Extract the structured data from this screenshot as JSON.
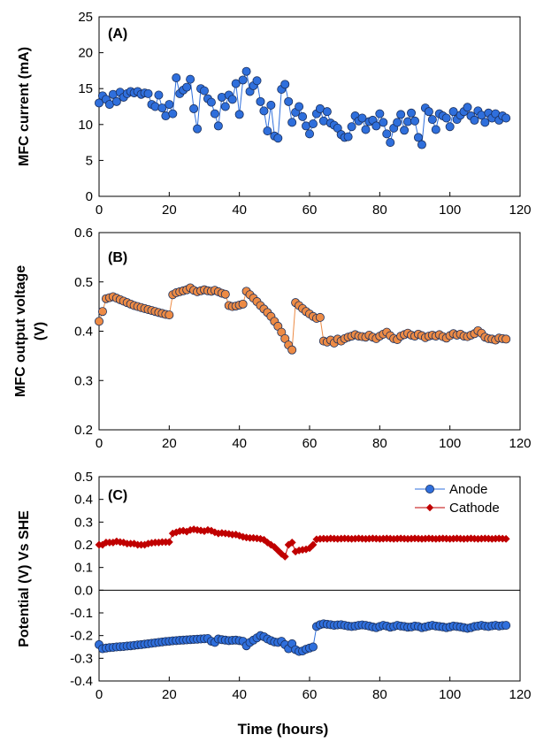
{
  "chart_data": [
    {
      "type": "scatter",
      "panel_label": "(A)",
      "ylabel": "MFC current (mA)",
      "xlim": [
        0,
        120
      ],
      "ylim": [
        0,
        25
      ],
      "xticks": [
        "0",
        "20",
        "40",
        "60",
        "80",
        "100",
        "120"
      ],
      "yticks": [
        "0",
        "5",
        "10",
        "15",
        "20",
        "25"
      ],
      "series": [
        {
          "color": "#2f6fdc",
          "x": [
            0,
            1,
            2,
            3,
            4,
            5,
            6,
            7,
            8,
            9,
            10,
            11,
            12,
            13,
            14,
            15,
            16,
            17,
            18,
            19,
            20,
            21,
            22,
            23,
            24,
            25,
            26,
            27,
            28,
            29,
            30,
            31,
            32,
            33,
            34,
            35,
            36,
            37,
            38,
            39,
            40,
            41,
            42,
            43,
            44,
            45,
            46,
            47,
            48,
            49,
            50,
            51,
            52,
            53,
            54,
            55,
            56,
            57,
            58,
            59,
            60,
            61,
            62,
            63,
            64,
            65,
            66,
            67,
            68,
            69,
            70,
            71,
            72,
            73,
            74,
            75,
            76,
            77,
            78,
            79,
            80,
            81,
            82,
            83,
            84,
            85,
            86,
            87,
            88,
            89,
            90,
            91,
            92,
            93,
            94,
            95,
            96,
            97,
            98,
            99,
            100,
            101,
            102,
            103,
            104,
            105,
            106,
            107,
            108,
            109,
            110,
            111,
            112,
            113,
            114,
            115,
            116
          ],
          "y": [
            13,
            14,
            13.5,
            12.8,
            14.2,
            13.2,
            14.5,
            13.8,
            14.3,
            14.6,
            14.4,
            14.6,
            14.2,
            14.4,
            14.3,
            12.8,
            12.5,
            14.1,
            12.3,
            11.2,
            12.8,
            11.5,
            16.5,
            14.3,
            14.8,
            15.2,
            16.3,
            12.2,
            9.4,
            15,
            14.7,
            13.6,
            13.1,
            11.5,
            9.8,
            13.8,
            12.5,
            14.1,
            13.5,
            15.7,
            11.4,
            16.2,
            17.4,
            14.6,
            15.4,
            16.1,
            13.2,
            11.9,
            9.1,
            12.7,
            8.4,
            8.1,
            14.9,
            15.6,
            13.2,
            10.3,
            11.7,
            12.5,
            11.1,
            9.8,
            8.7,
            10.1,
            11.5,
            12.2,
            10.5,
            11.8,
            10.2,
            9.9,
            9.5,
            8.6,
            8.2,
            8.3,
            9.7,
            11.2,
            10.5,
            10.9,
            9.3,
            10.4,
            10.6,
            9.8,
            11.5,
            10.3,
            8.7,
            7.5,
            9.5,
            10.3,
            11.4,
            9.2,
            10.4,
            11.6,
            10.5,
            8.2,
            7.2,
            12.3,
            11.8,
            10.7,
            9.3,
            11.5,
            11.2,
            10.9,
            9.7,
            11.8,
            10.7,
            11.3,
            11.8,
            12.4,
            11.2,
            10.6,
            11.9,
            11.3,
            10.3,
            11.6,
            10.9,
            11.5,
            10.6,
            11.2,
            10.9
          ]
        }
      ]
    },
    {
      "type": "scatter",
      "panel_label": "(B)",
      "ylabel": "MFC output voltage (V)",
      "xlim": [
        0,
        120
      ],
      "ylim": [
        0.2,
        0.6
      ],
      "xticks": [
        "0",
        "20",
        "40",
        "60",
        "80",
        "100",
        "120"
      ],
      "yticks": [
        "0.2",
        "0.3",
        "0.4",
        "0.5",
        "0.6"
      ],
      "series": [
        {
          "color": "#ed8b45",
          "x": [
            0,
            1,
            2,
            3,
            4,
            5,
            6,
            7,
            8,
            9,
            10,
            11,
            12,
            13,
            14,
            15,
            16,
            17,
            18,
            19,
            20,
            21,
            22,
            23,
            24,
            25,
            26,
            27,
            28,
            29,
            30,
            31,
            32,
            33,
            34,
            35,
            36,
            37,
            38,
            39,
            40,
            41,
            42,
            43,
            44,
            45,
            46,
            47,
            48,
            49,
            50,
            51,
            52,
            53,
            54,
            55,
            56,
            57,
            58,
            59,
            60,
            61,
            62,
            63,
            64,
            65,
            66,
            67,
            68,
            69,
            70,
            71,
            72,
            73,
            74,
            75,
            76,
            77,
            78,
            79,
            80,
            81,
            82,
            83,
            84,
            85,
            86,
            87,
            88,
            89,
            90,
            91,
            92,
            93,
            94,
            95,
            96,
            97,
            98,
            99,
            100,
            101,
            102,
            103,
            104,
            105,
            106,
            107,
            108,
            109,
            110,
            111,
            112,
            113,
            114,
            115,
            116
          ],
          "y": [
            0.42,
            0.44,
            0.466,
            0.468,
            0.47,
            0.467,
            0.464,
            0.461,
            0.458,
            0.455,
            0.452,
            0.45,
            0.448,
            0.446,
            0.444,
            0.442,
            0.44,
            0.438,
            0.436,
            0.434,
            0.433,
            0.474,
            0.478,
            0.48,
            0.482,
            0.484,
            0.488,
            0.483,
            0.48,
            0.482,
            0.484,
            0.482,
            0.481,
            0.483,
            0.48,
            0.477,
            0.475,
            0.452,
            0.45,
            0.451,
            0.453,
            0.455,
            0.481,
            0.474,
            0.467,
            0.46,
            0.452,
            0.445,
            0.438,
            0.43,
            0.42,
            0.41,
            0.398,
            0.385,
            0.372,
            0.362,
            0.458,
            0.452,
            0.446,
            0.44,
            0.435,
            0.43,
            0.426,
            0.428,
            0.38,
            0.378,
            0.382,
            0.376,
            0.384,
            0.38,
            0.385,
            0.388,
            0.39,
            0.393,
            0.39,
            0.389,
            0.388,
            0.392,
            0.388,
            0.385,
            0.39,
            0.394,
            0.398,
            0.391,
            0.385,
            0.383,
            0.39,
            0.393,
            0.396,
            0.392,
            0.39,
            0.394,
            0.391,
            0.387,
            0.39,
            0.392,
            0.39,
            0.393,
            0.389,
            0.386,
            0.391,
            0.395,
            0.392,
            0.394,
            0.39,
            0.389,
            0.392,
            0.395,
            0.401,
            0.396,
            0.388,
            0.385,
            0.384,
            0.382,
            0.386,
            0.385,
            0.384
          ]
        }
      ]
    },
    {
      "type": "scatter",
      "panel_label": "(C)",
      "ylabel": "Potential (V) Vs SHE",
      "xlabel": "Time (hours)",
      "xlim": [
        0,
        120
      ],
      "ylim": [
        -0.4,
        0.5
      ],
      "xticks": [
        "0",
        "20",
        "40",
        "60",
        "80",
        "100",
        "120"
      ],
      "yticks": [
        "-0.4",
        "-0.3",
        "-0.2",
        "-0.1",
        "0.0",
        "0.1",
        "0.2",
        "0.3",
        "0.4",
        "0.5"
      ],
      "legend_position": "top-right",
      "series": [
        {
          "name": "Anode",
          "marker": "circle",
          "color": "#2f6fdc",
          "x": [
            0,
            1,
            2,
            3,
            4,
            5,
            6,
            7,
            8,
            9,
            10,
            11,
            12,
            13,
            14,
            15,
            16,
            17,
            18,
            19,
            20,
            21,
            22,
            23,
            24,
            25,
            26,
            27,
            28,
            29,
            30,
            31,
            32,
            33,
            34,
            35,
            36,
            37,
            38,
            39,
            40,
            41,
            42,
            43,
            44,
            45,
            46,
            47,
            48,
            49,
            50,
            51,
            52,
            53,
            54,
            55,
            56,
            57,
            58,
            59,
            60,
            61,
            62,
            63,
            64,
            65,
            66,
            67,
            68,
            69,
            70,
            71,
            72,
            73,
            74,
            75,
            76,
            77,
            78,
            79,
            80,
            81,
            82,
            83,
            84,
            85,
            86,
            87,
            88,
            89,
            90,
            91,
            92,
            93,
            94,
            95,
            96,
            97,
            98,
            99,
            100,
            101,
            102,
            103,
            104,
            105,
            106,
            107,
            108,
            109,
            110,
            111,
            112,
            113,
            114,
            115,
            116
          ],
          "y": [
            -0.24,
            -0.258,
            -0.255,
            -0.253,
            -0.252,
            -0.25,
            -0.249,
            -0.248,
            -0.246,
            -0.245,
            -0.243,
            -0.241,
            -0.24,
            -0.238,
            -0.236,
            -0.234,
            -0.232,
            -0.23,
            -0.228,
            -0.226,
            -0.225,
            -0.223,
            -0.222,
            -0.221,
            -0.22,
            -0.219,
            -0.218,
            -0.217,
            -0.216,
            -0.215,
            -0.214,
            -0.213,
            -0.225,
            -0.23,
            -0.215,
            -0.218,
            -0.22,
            -0.222,
            -0.221,
            -0.22,
            -0.222,
            -0.225,
            -0.245,
            -0.23,
            -0.22,
            -0.21,
            -0.2,
            -0.205,
            -0.215,
            -0.222,
            -0.228,
            -0.23,
            -0.225,
            -0.24,
            -0.258,
            -0.236,
            -0.262,
            -0.27,
            -0.268,
            -0.26,
            -0.255,
            -0.25,
            -0.16,
            -0.152,
            -0.148,
            -0.15,
            -0.152,
            -0.155,
            -0.153,
            -0.152,
            -0.155,
            -0.158,
            -0.16,
            -0.158,
            -0.155,
            -0.153,
            -0.155,
            -0.158,
            -0.162,
            -0.165,
            -0.16,
            -0.155,
            -0.158,
            -0.163,
            -0.16,
            -0.155,
            -0.158,
            -0.16,
            -0.163,
            -0.162,
            -0.158,
            -0.16,
            -0.165,
            -0.162,
            -0.158,
            -0.155,
            -0.158,
            -0.16,
            -0.162,
            -0.165,
            -0.162,
            -0.158,
            -0.16,
            -0.162,
            -0.165,
            -0.168,
            -0.165,
            -0.16,
            -0.158,
            -0.155,
            -0.158,
            -0.16,
            -0.157,
            -0.155,
            -0.158,
            -0.156,
            -0.155
          ]
        },
        {
          "name": "Cathode",
          "marker": "diamond",
          "color": "#c00000",
          "x": [
            0,
            1,
            2,
            3,
            4,
            5,
            6,
            7,
            8,
            9,
            10,
            11,
            12,
            13,
            14,
            15,
            16,
            17,
            18,
            19,
            20,
            21,
            22,
            23,
            24,
            25,
            26,
            27,
            28,
            29,
            30,
            31,
            32,
            33,
            34,
            35,
            36,
            37,
            38,
            39,
            40,
            41,
            42,
            43,
            44,
            45,
            46,
            47,
            48,
            49,
            50,
            51,
            52,
            53,
            54,
            55,
            56,
            57,
            58,
            59,
            60,
            61,
            62,
            63,
            64,
            65,
            66,
            67,
            68,
            69,
            70,
            71,
            72,
            73,
            74,
            75,
            76,
            77,
            78,
            79,
            80,
            81,
            82,
            83,
            84,
            85,
            86,
            87,
            88,
            89,
            90,
            91,
            92,
            93,
            94,
            95,
            96,
            97,
            98,
            99,
            100,
            101,
            102,
            103,
            104,
            105,
            106,
            107,
            108,
            109,
            110,
            111,
            112,
            113,
            114,
            115,
            116
          ],
          "y": [
            0.2,
            0.2,
            0.21,
            0.21,
            0.21,
            0.215,
            0.212,
            0.21,
            0.205,
            0.205,
            0.205,
            0.2,
            0.2,
            0.2,
            0.205,
            0.208,
            0.21,
            0.21,
            0.212,
            0.212,
            0.212,
            0.25,
            0.255,
            0.26,
            0.262,
            0.258,
            0.265,
            0.268,
            0.265,
            0.263,
            0.26,
            0.265,
            0.262,
            0.255,
            0.25,
            0.252,
            0.25,
            0.248,
            0.245,
            0.245,
            0.24,
            0.235,
            0.232,
            0.23,
            0.23,
            0.228,
            0.226,
            0.222,
            0.21,
            0.2,
            0.19,
            0.175,
            0.16,
            0.148,
            0.2,
            0.21,
            0.17,
            0.175,
            0.178,
            0.18,
            0.185,
            0.2,
            0.224,
            0.226,
            0.227,
            0.226,
            0.228,
            0.227,
            0.226,
            0.227,
            0.228,
            0.227,
            0.226,
            0.227,
            0.228,
            0.227,
            0.226,
            0.227,
            0.228,
            0.227,
            0.226,
            0.227,
            0.228,
            0.227,
            0.226,
            0.227,
            0.228,
            0.227,
            0.226,
            0.227,
            0.228,
            0.227,
            0.226,
            0.227,
            0.228,
            0.227,
            0.226,
            0.227,
            0.228,
            0.227,
            0.226,
            0.227,
            0.228,
            0.227,
            0.226,
            0.227,
            0.228,
            0.227,
            0.226,
            0.227,
            0.228,
            0.227,
            0.226,
            0.227,
            0.228,
            0.227,
            0.226
          ]
        }
      ]
    }
  ]
}
